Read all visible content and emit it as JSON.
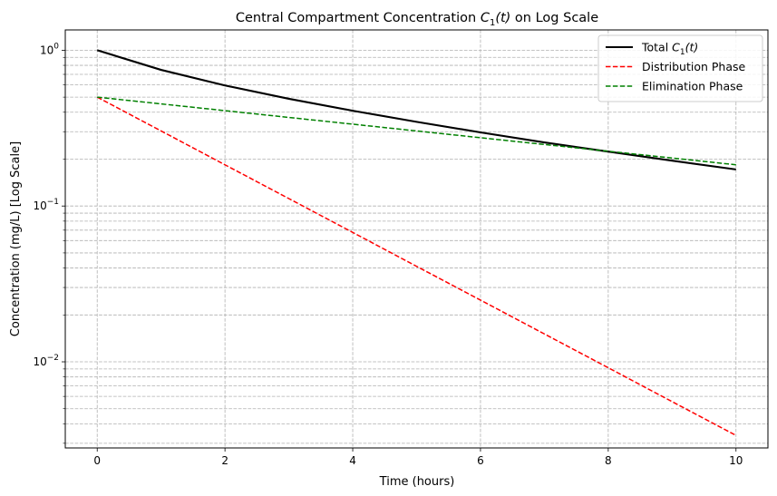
{
  "chart_data": {
    "type": "line",
    "title_main": "Central Compartment Concentration ",
    "title_sym": "C",
    "title_sub": "1",
    "title_arg": "(t)",
    "title_suffix": " on Log Scale",
    "xlabel": "Time (hours)",
    "ylabel": "Concentration (mg/L) [Log Scale]",
    "x_scale": "linear",
    "y_scale": "log",
    "xlim": [
      -0.5,
      10.5
    ],
    "ylim": [
      0.0028,
      1.35
    ],
    "x_ticks": [
      0,
      2,
      4,
      6,
      8,
      10
    ],
    "y_major_ticks": [
      {
        "value": 1,
        "base": "10",
        "exp": "0"
      },
      {
        "value": 0.1,
        "base": "10",
        "exp": "−1"
      },
      {
        "value": 0.01,
        "base": "10",
        "exp": "−2"
      }
    ],
    "y_minor_ticks": [
      0.003,
      0.004,
      0.005,
      0.006,
      0.007,
      0.008,
      0.009,
      0.02,
      0.03,
      0.04,
      0.05,
      0.06,
      0.07,
      0.08,
      0.09,
      0.2,
      0.3,
      0.4,
      0.5,
      0.6,
      0.7,
      0.8,
      0.9
    ],
    "grid": true,
    "grid_style": "dashed",
    "legend_position": "top-right",
    "series": [
      {
        "name": "Total C1(t)",
        "legend_text": "Total ",
        "legend_sym": "C",
        "legend_sub": "1",
        "legend_arg": "(t)",
        "color": "#000000",
        "style": "solid",
        "x": [
          0,
          1,
          2,
          3,
          4,
          5,
          6,
          7,
          8,
          9,
          10
        ],
        "y": [
          1.0,
          0.748,
          0.594,
          0.488,
          0.409,
          0.347,
          0.297,
          0.256,
          0.2235,
          0.1955,
          0.1717
        ]
      },
      {
        "name": "Distribution Phase",
        "legend_text": "Distribution Phase",
        "color": "#ff0000",
        "style": "dashed",
        "x": [
          0,
          1,
          2,
          3,
          4,
          5,
          6,
          7,
          8,
          9,
          10
        ],
        "y": [
          0.5,
          0.3033,
          0.1839,
          0.1116,
          0.0677,
          0.041,
          0.0249,
          0.0151,
          0.00916,
          0.00555,
          0.00337
        ]
      },
      {
        "name": "Elimination Phase",
        "legend_text": "Elimination Phase",
        "color": "#008000",
        "style": "dashed",
        "x": [
          0,
          1,
          2,
          3,
          4,
          5,
          6,
          7,
          8,
          9,
          10
        ],
        "y": [
          0.5,
          0.4524,
          0.4094,
          0.3704,
          0.3352,
          0.3033,
          0.2744,
          0.2483,
          0.2247,
          0.2033,
          0.1839
        ]
      }
    ]
  }
}
